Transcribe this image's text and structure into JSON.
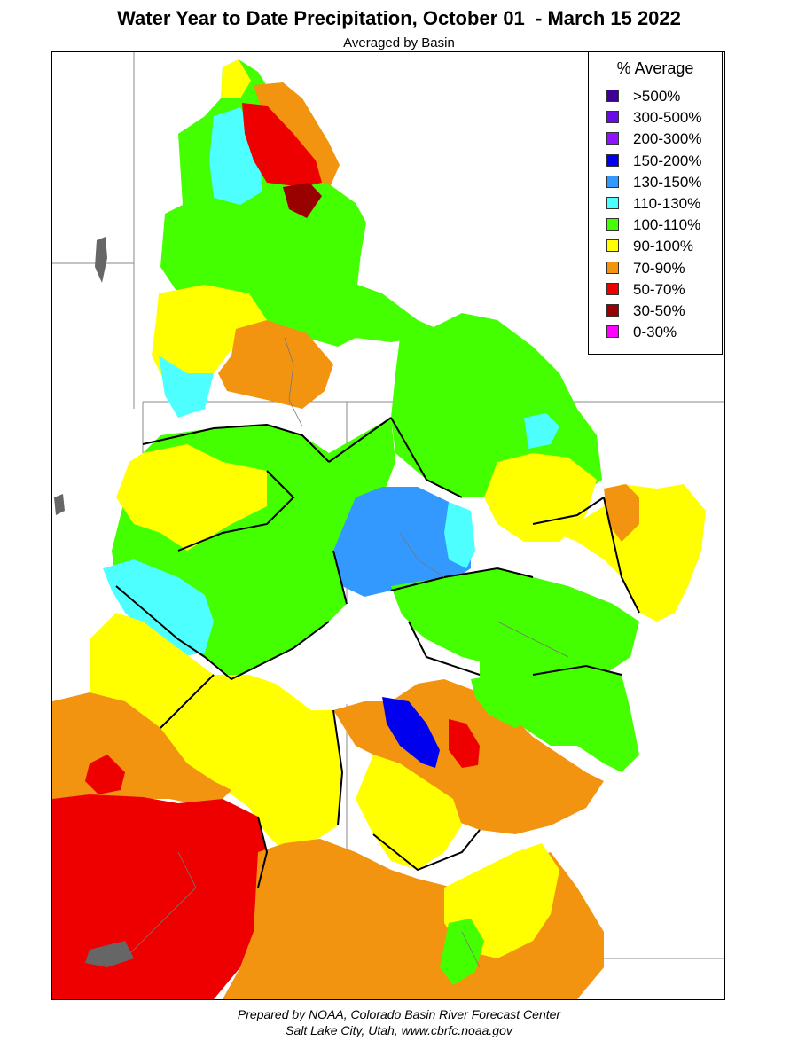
{
  "title": "Water Year to Date Precipitation, October 01  - March 15 2022",
  "subtitle": "Averaged by Basin",
  "legend": {
    "title": "% Average",
    "items": [
      {
        "label": ">500%",
        "color": "#3c0096"
      },
      {
        "label": "300-500%",
        "color": "#6a0ae6"
      },
      {
        "label": "200-300%",
        "color": "#8c14ff"
      },
      {
        "label": "150-200%",
        "color": "#0000ee"
      },
      {
        "label": "130-150%",
        "color": "#3399ff"
      },
      {
        "label": "110-130%",
        "color": "#4dffff"
      },
      {
        "label": "100-110%",
        "color": "#44ff00"
      },
      {
        "label": "90-100%",
        "color": "#ffff00"
      },
      {
        "label": "70-90%",
        "color": "#f39410"
      },
      {
        "label": "50-70%",
        "color": "#ee0000"
      },
      {
        "label": "30-50%",
        "color": "#990000"
      },
      {
        "label": "0-30%",
        "color": "#ff00ff"
      }
    ]
  },
  "footer": {
    "line1": "Prepared by NOAA, Colorado Basin River Forecast Center",
    "line2": "Salt Lake City, Utah, www.cbrfc.noaa.gov"
  }
}
